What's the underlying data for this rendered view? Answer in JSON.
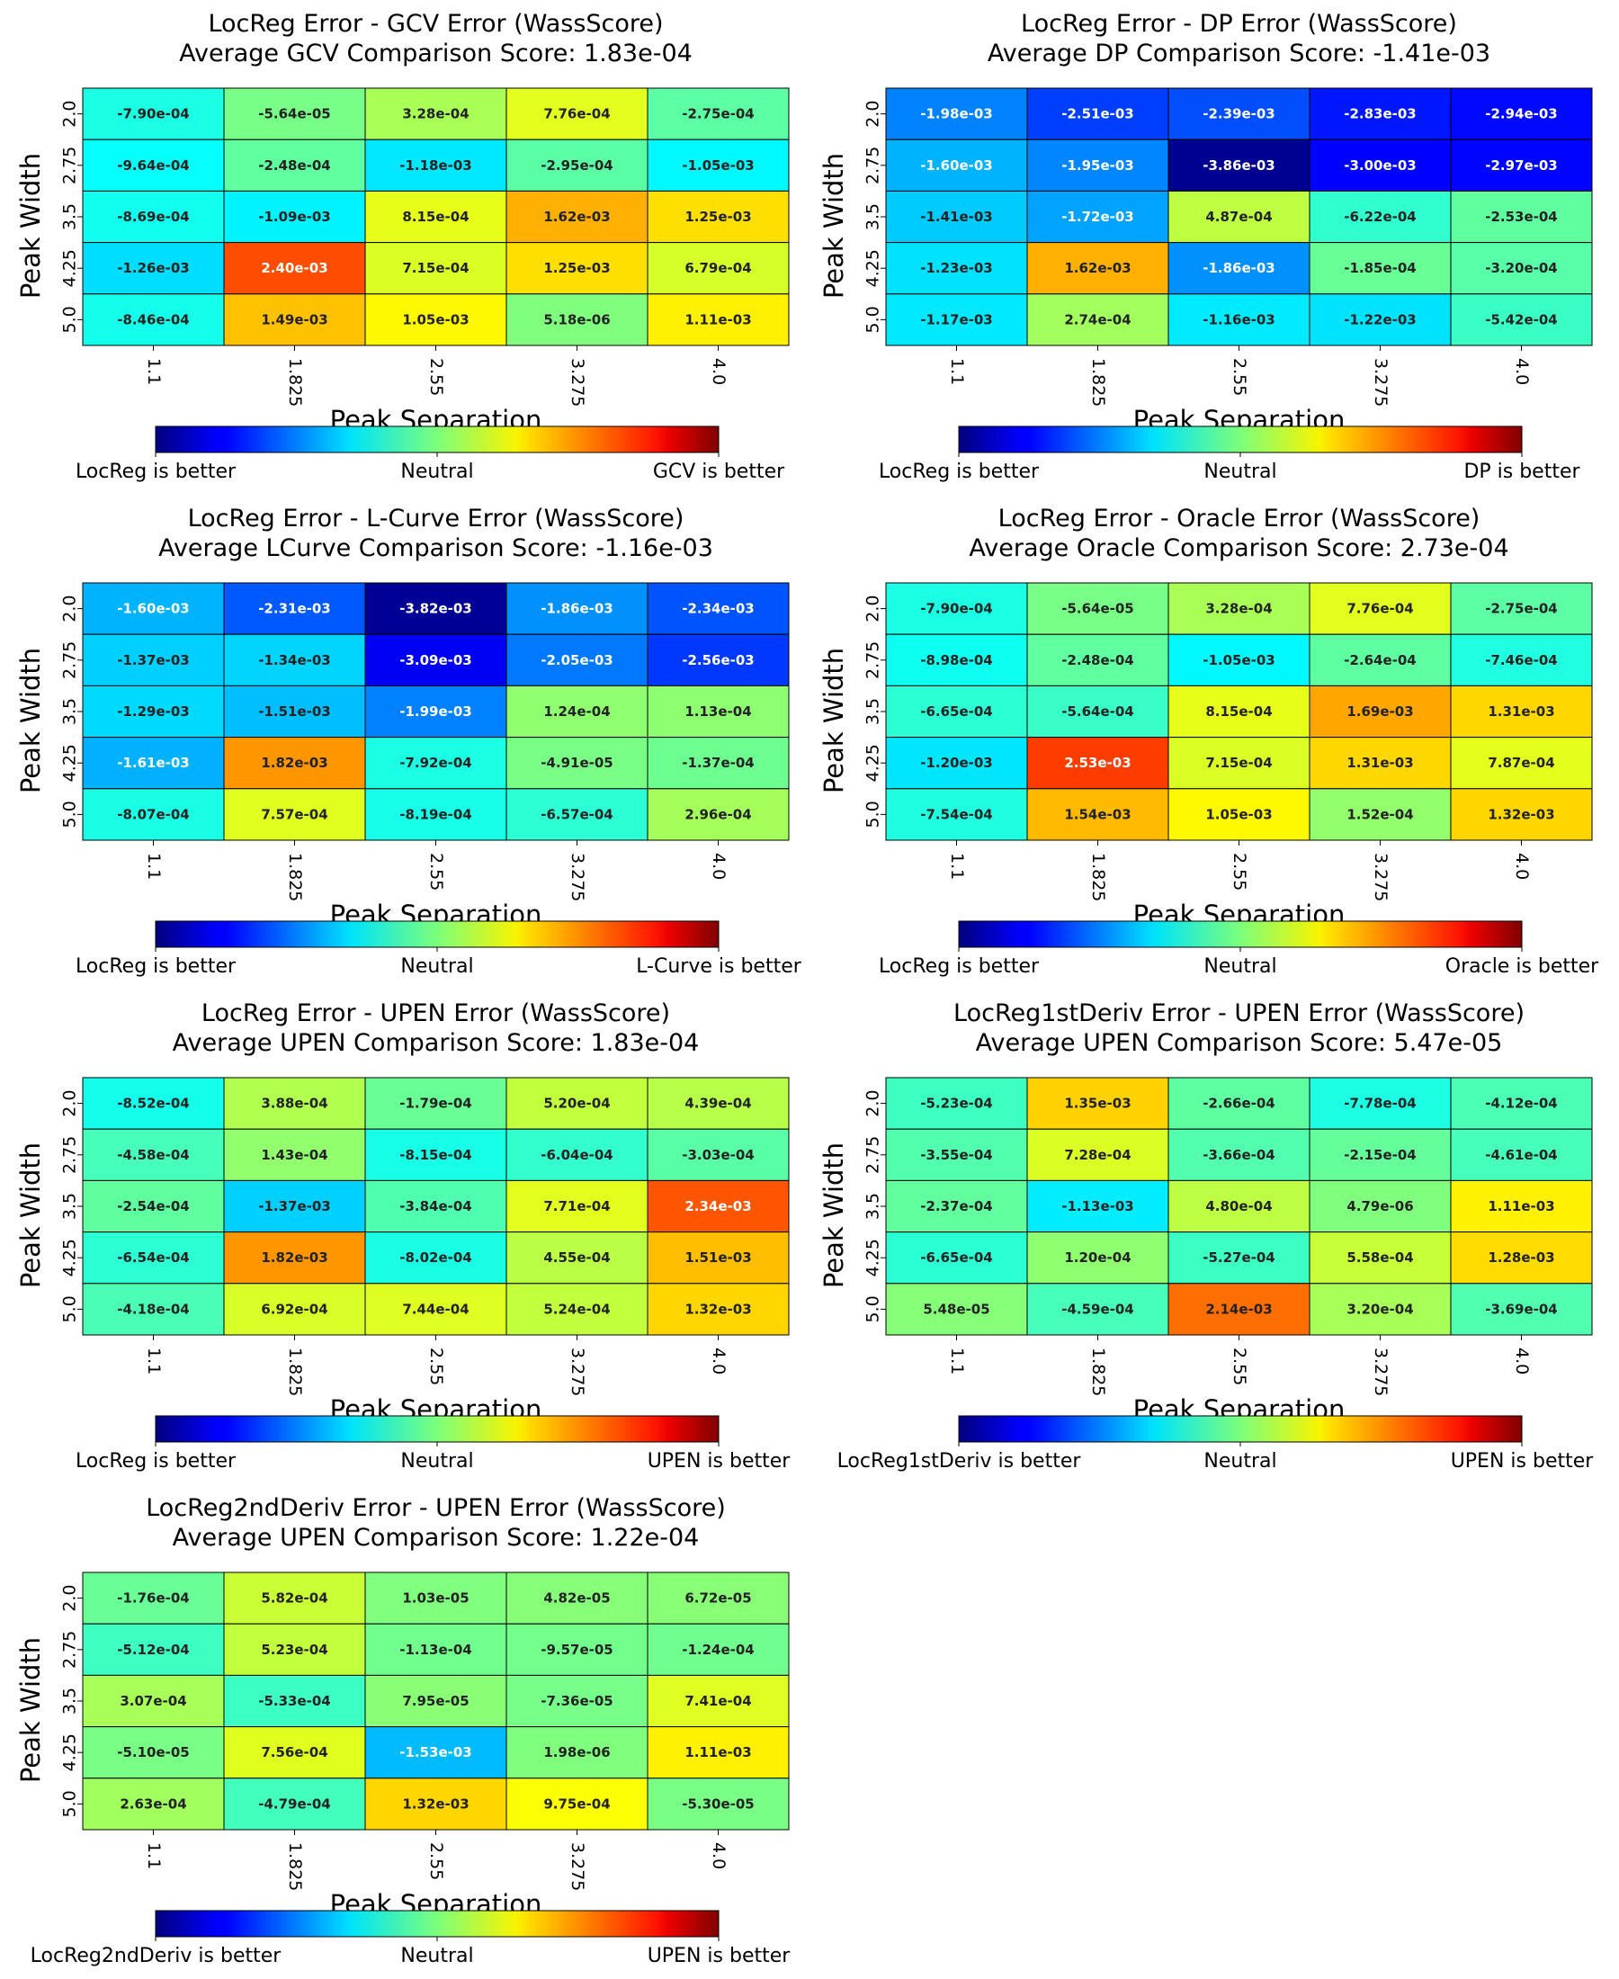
{
  "figure": {
    "x_axis_label": "Peak Separation",
    "y_axis_label": "Peak Width",
    "x_tick_labels": [
      "1.1",
      "1.825",
      "2.55",
      "3.275",
      "4.0"
    ],
    "y_tick_labels": [
      "2.0",
      "2.75",
      "3.5",
      "4.25",
      "5.0"
    ],
    "colormap": "jet",
    "neutral_label": "Neutral"
  },
  "chart_data": [
    {
      "type": "heatmap",
      "title": "LocReg Error - GCV Error (WassScore)",
      "subtitle": "Average GCV Comparison Score: 1.83e-04",
      "xlabel": "Peak Separation",
      "ylabel": "Peak Width",
      "x": [
        "1.1",
        "1.825",
        "2.55",
        "3.275",
        "4.0"
      ],
      "y": [
        "2.0",
        "2.75",
        "3.5",
        "4.25",
        "5.0"
      ],
      "values": [
        [
          -0.00079,
          -5.64e-05,
          0.000328,
          0.000776,
          -0.000275
        ],
        [
          -0.000964,
          -0.000248,
          -0.00118,
          -0.000295,
          -0.00105
        ],
        [
          -0.000869,
          -0.00109,
          0.000815,
          0.00162,
          0.00125
        ],
        [
          -0.00126,
          0.0024,
          0.000715,
          0.00125,
          0.000679
        ],
        [
          -0.000846,
          0.00149,
          0.00105,
          5.18e-06,
          0.00111
        ]
      ],
      "labels": [
        [
          "-7.90e-04",
          "-5.64e-05",
          "3.28e-04",
          "7.76e-04",
          "-2.75e-04"
        ],
        [
          "-9.64e-04",
          "-2.48e-04",
          "-1.18e-03",
          "-2.95e-04",
          "-1.05e-03"
        ],
        [
          "-8.69e-04",
          "-1.09e-03",
          "8.15e-04",
          "1.62e-03",
          "1.25e-03"
        ],
        [
          "-1.26e-03",
          "2.40e-03",
          "7.15e-04",
          "1.25e-03",
          "6.79e-04"
        ],
        [
          "-8.46e-04",
          "1.49e-03",
          "1.05e-03",
          "5.18e-06",
          "1.11e-03"
        ]
      ],
      "colorbar": {
        "left": "LocReg is better",
        "center": "Neutral",
        "right": "GCV is better"
      }
    },
    {
      "type": "heatmap",
      "title": "LocReg Error - DP Error (WassScore)",
      "subtitle": "Average DP Comparison Score: -1.41e-03",
      "xlabel": "Peak Separation",
      "ylabel": "Peak Width",
      "x": [
        "1.1",
        "1.825",
        "2.55",
        "3.275",
        "4.0"
      ],
      "y": [
        "2.0",
        "2.75",
        "3.5",
        "4.25",
        "5.0"
      ],
      "values": [
        [
          -0.00198,
          -0.00251,
          -0.00239,
          -0.00283,
          -0.00294
        ],
        [
          -0.0016,
          -0.00195,
          -0.00386,
          -0.003,
          -0.00297
        ],
        [
          -0.00141,
          -0.00172,
          0.000487,
          -0.000622,
          -0.000253
        ],
        [
          -0.00123,
          0.00162,
          -0.00186,
          -0.000185,
          -0.00032
        ],
        [
          -0.00117,
          0.000274,
          -0.00116,
          -0.00122,
          -0.000542
        ]
      ],
      "labels": [
        [
          "-1.98e-03",
          "-2.51e-03",
          "-2.39e-03",
          "-2.83e-03",
          "-2.94e-03"
        ],
        [
          "-1.60e-03",
          "-1.95e-03",
          "-3.86e-03",
          "-3.00e-03",
          "-2.97e-03"
        ],
        [
          "-1.41e-03",
          "-1.72e-03",
          "4.87e-04",
          "-6.22e-04",
          "-2.53e-04"
        ],
        [
          "-1.23e-03",
          "1.62e-03",
          "-1.86e-03",
          "-1.85e-04",
          "-3.20e-04"
        ],
        [
          "-1.17e-03",
          "2.74e-04",
          "-1.16e-03",
          "-1.22e-03",
          "-5.42e-04"
        ]
      ],
      "colorbar": {
        "left": "LocReg is better",
        "center": "Neutral",
        "right": "DP is better"
      }
    },
    {
      "type": "heatmap",
      "title": "LocReg Error - L-Curve Error (WassScore)",
      "subtitle": "Average LCurve Comparison Score: -1.16e-03",
      "xlabel": "Peak Separation",
      "ylabel": "Peak Width",
      "x": [
        "1.1",
        "1.825",
        "2.55",
        "3.275",
        "4.0"
      ],
      "y": [
        "2.0",
        "2.75",
        "3.5",
        "4.25",
        "5.0"
      ],
      "values": [
        [
          -0.0016,
          -0.00231,
          -0.00382,
          -0.00186,
          -0.00234
        ],
        [
          -0.00137,
          -0.00134,
          -0.00309,
          -0.00205,
          -0.00256
        ],
        [
          -0.00129,
          -0.00151,
          -0.00199,
          0.000124,
          0.000113
        ],
        [
          -0.00161,
          0.00182,
          -0.000792,
          -4.91e-05,
          -0.000137
        ],
        [
          -0.000807,
          0.000757,
          -0.000819,
          -0.000657,
          0.000296
        ]
      ],
      "labels": [
        [
          "-1.60e-03",
          "-2.31e-03",
          "-3.82e-03",
          "-1.86e-03",
          "-2.34e-03"
        ],
        [
          "-1.37e-03",
          "-1.34e-03",
          "-3.09e-03",
          "-2.05e-03",
          "-2.56e-03"
        ],
        [
          "-1.29e-03",
          "-1.51e-03",
          "-1.99e-03",
          "1.24e-04",
          "1.13e-04"
        ],
        [
          "-1.61e-03",
          "1.82e-03",
          "-7.92e-04",
          "-4.91e-05",
          "-1.37e-04"
        ],
        [
          "-8.07e-04",
          "7.57e-04",
          "-8.19e-04",
          "-6.57e-04",
          "2.96e-04"
        ]
      ],
      "colorbar": {
        "left": "LocReg is better",
        "center": "Neutral",
        "right": "L-Curve is better"
      }
    },
    {
      "type": "heatmap",
      "title": "LocReg Error - Oracle Error (WassScore)",
      "subtitle": "Average Oracle Comparison Score: 2.73e-04",
      "xlabel": "Peak Separation",
      "ylabel": "Peak Width",
      "x": [
        "1.1",
        "1.825",
        "2.55",
        "3.275",
        "4.0"
      ],
      "y": [
        "2.0",
        "2.75",
        "3.5",
        "4.25",
        "5.0"
      ],
      "values": [
        [
          -0.00079,
          -5.64e-05,
          0.000328,
          0.000776,
          -0.000275
        ],
        [
          -0.000898,
          -0.000248,
          -0.00105,
          -0.000264,
          -0.000746
        ],
        [
          -0.000665,
          -0.000564,
          0.000815,
          0.00169,
          0.00131
        ],
        [
          -0.0012,
          0.00253,
          0.000715,
          0.00131,
          0.000787
        ],
        [
          -0.000754,
          0.00154,
          0.00105,
          0.000152,
          0.00132
        ]
      ],
      "labels": [
        [
          "-7.90e-04",
          "-5.64e-05",
          "3.28e-04",
          "7.76e-04",
          "-2.75e-04"
        ],
        [
          "-8.98e-04",
          "-2.48e-04",
          "-1.05e-03",
          "-2.64e-04",
          "-7.46e-04"
        ],
        [
          "-6.65e-04",
          "-5.64e-04",
          "8.15e-04",
          "1.69e-03",
          "1.31e-03"
        ],
        [
          "-1.20e-03",
          "2.53e-03",
          "7.15e-04",
          "1.31e-03",
          "7.87e-04"
        ],
        [
          "-7.54e-04",
          "1.54e-03",
          "1.05e-03",
          "1.52e-04",
          "1.32e-03"
        ]
      ],
      "colorbar": {
        "left": "LocReg is better",
        "center": "Neutral",
        "right": "Oracle is better"
      }
    },
    {
      "type": "heatmap",
      "title": "LocReg Error - UPEN Error (WassScore)",
      "subtitle": "Average UPEN Comparison Score: 1.83e-04",
      "xlabel": "Peak Separation",
      "ylabel": "Peak Width",
      "x": [
        "1.1",
        "1.825",
        "2.55",
        "3.275",
        "4.0"
      ],
      "y": [
        "2.0",
        "2.75",
        "3.5",
        "4.25",
        "5.0"
      ],
      "values": [
        [
          -0.000852,
          0.000388,
          -0.000179,
          0.00052,
          0.000439
        ],
        [
          -0.000458,
          0.000143,
          -0.000815,
          -0.000604,
          -0.000303
        ],
        [
          -0.000254,
          -0.00137,
          -0.000384,
          0.000771,
          0.00234
        ],
        [
          -0.000654,
          0.00182,
          -0.000802,
          0.000455,
          0.00151
        ],
        [
          -0.000418,
          0.000692,
          0.000744,
          0.000524,
          0.00132
        ]
      ],
      "labels": [
        [
          "-8.52e-04",
          "3.88e-04",
          "-1.79e-04",
          "5.20e-04",
          "4.39e-04"
        ],
        [
          "-4.58e-04",
          "1.43e-04",
          "-8.15e-04",
          "-6.04e-04",
          "-3.03e-04"
        ],
        [
          "-2.54e-04",
          "-1.37e-03",
          "-3.84e-04",
          "7.71e-04",
          "2.34e-03"
        ],
        [
          "-6.54e-04",
          "1.82e-03",
          "-8.02e-04",
          "4.55e-04",
          "1.51e-03"
        ],
        [
          "-4.18e-04",
          "6.92e-04",
          "7.44e-04",
          "5.24e-04",
          "1.32e-03"
        ]
      ],
      "colorbar": {
        "left": "LocReg is better",
        "center": "Neutral",
        "right": "UPEN is better"
      }
    },
    {
      "type": "heatmap",
      "title": "LocReg1stDeriv Error - UPEN Error (WassScore)",
      "subtitle": "Average UPEN Comparison Score: 5.47e-05",
      "xlabel": "Peak Separation",
      "ylabel": "Peak Width",
      "x": [
        "1.1",
        "1.825",
        "2.55",
        "3.275",
        "4.0"
      ],
      "y": [
        "2.0",
        "2.75",
        "3.5",
        "4.25",
        "5.0"
      ],
      "values": [
        [
          -0.000523,
          0.00135,
          -0.000266,
          -0.000778,
          -0.000412
        ],
        [
          -0.000355,
          0.000728,
          -0.000366,
          -0.000215,
          -0.000461
        ],
        [
          -0.000237,
          -0.00113,
          0.00048,
          4.79e-06,
          0.00111
        ],
        [
          -0.000665,
          0.00012,
          -0.000527,
          0.000558,
          0.00128
        ],
        [
          5.48e-05,
          -0.000459,
          0.00214,
          0.00032,
          -0.000369
        ]
      ],
      "labels": [
        [
          "-5.23e-04",
          "1.35e-03",
          "-2.66e-04",
          "-7.78e-04",
          "-4.12e-04"
        ],
        [
          "-3.55e-04",
          "7.28e-04",
          "-3.66e-04",
          "-2.15e-04",
          "-4.61e-04"
        ],
        [
          "-2.37e-04",
          "-1.13e-03",
          "4.80e-04",
          "4.79e-06",
          "1.11e-03"
        ],
        [
          "-6.65e-04",
          "1.20e-04",
          "-5.27e-04",
          "5.58e-04",
          "1.28e-03"
        ],
        [
          "5.48e-05",
          "-4.59e-04",
          "2.14e-03",
          "3.20e-04",
          "-3.69e-04"
        ]
      ],
      "colorbar": {
        "left": "LocReg1stDeriv is better",
        "center": "Neutral",
        "right": "UPEN is better"
      }
    },
    {
      "type": "heatmap",
      "title": "LocReg2ndDeriv Error - UPEN Error (WassScore)",
      "subtitle": "Average UPEN Comparison Score: 1.22e-04",
      "xlabel": "Peak Separation",
      "ylabel": "Peak Width",
      "x": [
        "1.1",
        "1.825",
        "2.55",
        "3.275",
        "4.0"
      ],
      "y": [
        "2.0",
        "2.75",
        "3.5",
        "4.25",
        "5.0"
      ],
      "values": [
        [
          -0.000176,
          0.000582,
          1.03e-05,
          4.82e-05,
          6.72e-05
        ],
        [
          -0.000512,
          0.000523,
          -0.000113,
          -9.57e-05,
          -0.000124
        ],
        [
          0.000307,
          -0.000533,
          7.95e-05,
          -7.36e-05,
          0.000741
        ],
        [
          -5.1e-05,
          0.000756,
          -0.00153,
          1.98e-06,
          0.00111
        ],
        [
          0.000263,
          -0.000479,
          0.00132,
          0.000975,
          -5.3e-05
        ]
      ],
      "labels": [
        [
          "-1.76e-04",
          "5.82e-04",
          "1.03e-05",
          "4.82e-05",
          "6.72e-05"
        ],
        [
          "-5.12e-04",
          "5.23e-04",
          "-1.13e-04",
          "-9.57e-05",
          "-1.24e-04"
        ],
        [
          "3.07e-04",
          "-5.33e-04",
          "7.95e-05",
          "-7.36e-05",
          "7.41e-04"
        ],
        [
          "-5.10e-05",
          "7.56e-04",
          "-1.53e-03",
          "1.98e-06",
          "1.11e-03"
        ],
        [
          "2.63e-04",
          "-4.79e-04",
          "1.32e-03",
          "9.75e-04",
          "-5.30e-05"
        ]
      ],
      "colorbar": {
        "left": "LocReg2ndDeriv is better",
        "center": "Neutral",
        "right": "UPEN is better"
      }
    }
  ]
}
